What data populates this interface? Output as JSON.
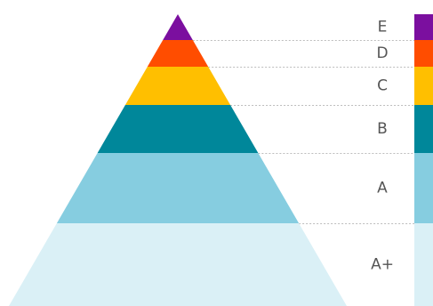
{
  "tiers": [
    {
      "label": "E",
      "color": "#7b0f9f"
    },
    {
      "label": "D",
      "color": "#ff4d00"
    },
    {
      "label": "C",
      "color": "#ffbf00"
    },
    {
      "label": "B",
      "color": "#00879a"
    },
    {
      "label": "A",
      "color": "#86cde0"
    },
    {
      "label": "A+",
      "color": "#daf0f6"
    }
  ]
}
